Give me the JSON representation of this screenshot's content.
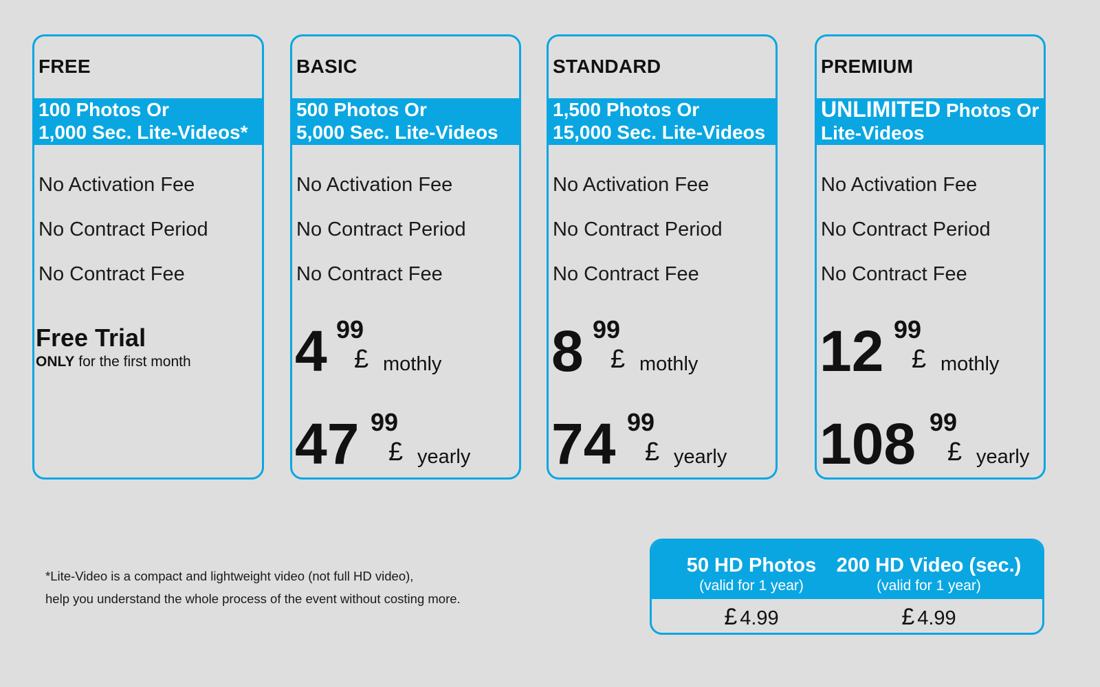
{
  "colors": {
    "accent": "#0aa6e2",
    "background": "#dedede",
    "text": "#111111"
  },
  "features": [
    "No Activation Fee",
    "No Contract Period",
    "No Contract Fee"
  ],
  "plans": {
    "free": {
      "name": "FREE",
      "band_line1": "100 Photos Or",
      "band_line2": "1,000 Sec. Lite-Videos*",
      "trial_title": "Free Trial",
      "trial_only": "ONLY",
      "trial_rest": " for the first month"
    },
    "basic": {
      "name": "BASIC",
      "band_line1": "500 Photos Or",
      "band_line2": "5,000 Sec. Lite-Videos",
      "monthly": {
        "whole": "4",
        "cents": "99",
        "currency": "£",
        "period": "mothly"
      },
      "yearly": {
        "whole": "47",
        "cents": "99",
        "currency": "£",
        "period": "yearly"
      }
    },
    "standard": {
      "name": "STANDARD",
      "band_line1": "1,500 Photos Or",
      "band_line2": "15,000 Sec. Lite-Videos",
      "monthly": {
        "whole": "8",
        "cents": "99",
        "currency": "£",
        "period": "mothly"
      },
      "yearly": {
        "whole": "74",
        "cents": "99",
        "currency": "£",
        "period": "yearly"
      }
    },
    "premium": {
      "name": "PREMIUM",
      "band_big": "UNLIMITED",
      "band_line1_rest": " Photos Or",
      "band_line2": "Lite-Videos",
      "monthly": {
        "whole": "12",
        "cents": "99",
        "currency": "£",
        "period": "mothly"
      },
      "yearly": {
        "whole": "108",
        "cents": "99",
        "currency": "£",
        "period": "yearly"
      }
    }
  },
  "footnote": {
    "line1": "*Lite-Video is a compact and lightweight video (not full HD video),",
    "line2": "help you understand the whole process of the event without costing more."
  },
  "addons": [
    {
      "title": "50 HD Photos",
      "subtitle": "(valid for 1 year)",
      "currency": "£",
      "price": "4.99"
    },
    {
      "title": "200 HD Video (sec.)",
      "subtitle": "(valid for 1 year)",
      "currency": "£",
      "price": "4.99"
    }
  ]
}
